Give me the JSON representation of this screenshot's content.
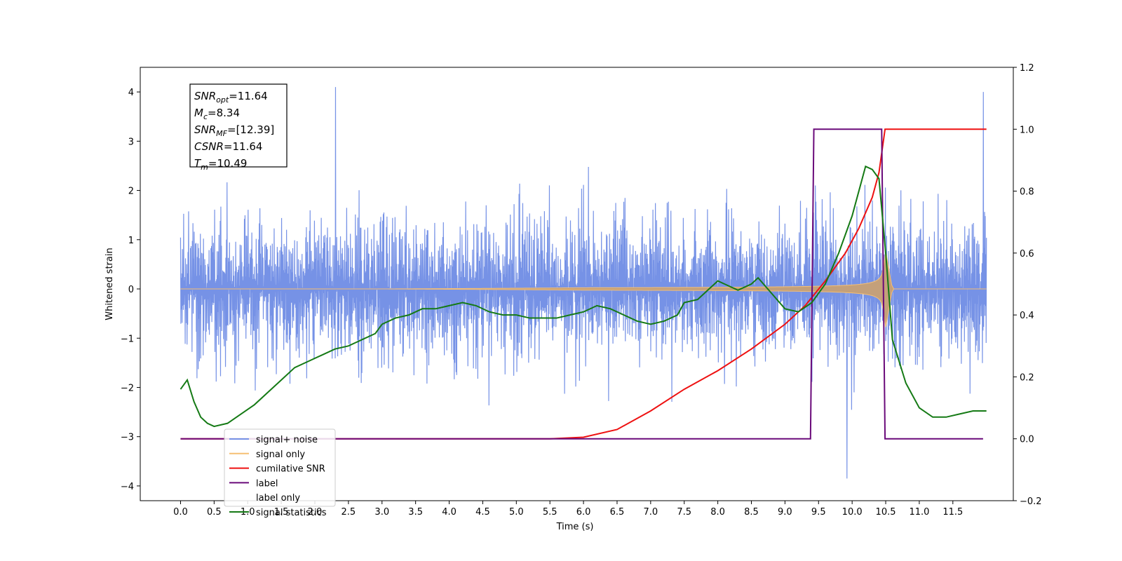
{
  "chart_data": {
    "type": "line",
    "title": "",
    "xlabel": "Time (s)",
    "ylabel": "Whitened strain",
    "xlim": [
      -0.6,
      12.4
    ],
    "ylim": [
      -4.3,
      4.5
    ],
    "y2lim": [
      -0.2,
      1.2
    ],
    "grid": false,
    "legend_position": "lower-left",
    "x_ticks": [
      "0.0",
      "0.5",
      "1.0",
      "1.5",
      "2.0",
      "2.5",
      "3.0",
      "3.5",
      "4.0",
      "4.5",
      "5.0",
      "5.5",
      "6.0",
      "6.5",
      "7.0",
      "7.5",
      "8.0",
      "8.5",
      "9.0",
      "9.5",
      "10.0",
      "10.5",
      "11.0",
      "11.5"
    ],
    "y_ticks": [
      "4",
      "3",
      "2",
      "1",
      "0",
      "−1",
      "−2",
      "−3",
      "−4"
    ],
    "y2_ticks": [
      "1.2",
      "1.0",
      "0.8",
      "0.6",
      "0.4",
      "0.2",
      "0.0",
      "−0.2"
    ],
    "annotation": [
      {
        "base": "SNR",
        "sub": "opt",
        "rest": "=11.64"
      },
      {
        "base": "M",
        "sub": "c",
        "rest": "=8.34"
      },
      {
        "base": "SNR",
        "sub": "MF",
        "rest": "=[12.39]"
      },
      {
        "base": "CSNR",
        "sub": "",
        "rest": "=11.64"
      },
      {
        "base": "T",
        "sub": "m",
        "rest": "=10.49"
      }
    ],
    "noise": {
      "t_start": 0.0,
      "t_end": 12.0,
      "typical_envelope": [
        -1.6,
        1.7
      ],
      "max": 4.1,
      "min": -3.85
    },
    "chirp": {
      "t_merge": 10.49,
      "peak_amplitude": 0.85,
      "ringdown_end": 10.6
    },
    "series": [
      {
        "name": "signal+ noise",
        "color": "#7692e6",
        "axis": "left"
      },
      {
        "name": "signal only",
        "color": "#f5bf73",
        "axis": "left"
      },
      {
        "name": "cumilative SNR",
        "color": "#ee1111",
        "axis": "right",
        "x": [
          0,
          5.5,
          6.0,
          6.5,
          7.0,
          7.5,
          8.0,
          8.5,
          9.0,
          9.3,
          9.6,
          9.9,
          10.1,
          10.3,
          10.4,
          10.49,
          12.0
        ],
        "y": [
          0.0,
          0.0,
          0.005,
          0.03,
          0.09,
          0.16,
          0.22,
          0.29,
          0.37,
          0.43,
          0.51,
          0.6,
          0.68,
          0.78,
          0.86,
          1.0,
          1.0
        ]
      },
      {
        "name": "label",
        "color": "#6a0a7a",
        "axis": "right",
        "x": [
          0,
          9.38,
          9.43,
          10.44,
          10.49,
          11.95
        ],
        "y": [
          0.0,
          0.0,
          1.0,
          1.0,
          0.0,
          0.0
        ]
      },
      {
        "name": "label only",
        "color": "#ffffff",
        "axis": "right",
        "hidden": true
      },
      {
        "name": "signal statistics",
        "color": "#157a15",
        "axis": "right",
        "x": [
          0.0,
          0.1,
          0.2,
          0.3,
          0.4,
          0.5,
          0.7,
          0.9,
          1.1,
          1.3,
          1.5,
          1.7,
          1.9,
          2.1,
          2.3,
          2.5,
          2.7,
          2.9,
          3.0,
          3.2,
          3.4,
          3.6,
          3.8,
          4.0,
          4.2,
          4.4,
          4.6,
          4.8,
          5.0,
          5.2,
          5.4,
          5.6,
          5.8,
          6.0,
          6.2,
          6.4,
          6.6,
          6.8,
          7.0,
          7.2,
          7.4,
          7.5,
          7.7,
          7.9,
          8.0,
          8.1,
          8.3,
          8.5,
          8.6,
          8.8,
          9.0,
          9.2,
          9.4,
          9.6,
          9.8,
          10.0,
          10.1,
          10.2,
          10.3,
          10.4,
          10.5,
          10.6,
          10.8,
          11.0,
          11.2,
          11.4,
          11.6,
          11.8,
          12.0
        ],
        "y": [
          0.16,
          0.19,
          0.12,
          0.07,
          0.05,
          0.04,
          0.05,
          0.08,
          0.11,
          0.15,
          0.19,
          0.23,
          0.25,
          0.27,
          0.29,
          0.3,
          0.32,
          0.34,
          0.37,
          0.39,
          0.4,
          0.42,
          0.42,
          0.43,
          0.44,
          0.43,
          0.41,
          0.4,
          0.4,
          0.39,
          0.39,
          0.39,
          0.4,
          0.41,
          0.43,
          0.42,
          0.4,
          0.38,
          0.37,
          0.38,
          0.4,
          0.44,
          0.45,
          0.49,
          0.51,
          0.5,
          0.48,
          0.5,
          0.52,
          0.47,
          0.42,
          0.41,
          0.44,
          0.5,
          0.6,
          0.72,
          0.8,
          0.88,
          0.87,
          0.84,
          0.6,
          0.32,
          0.18,
          0.1,
          0.07,
          0.07,
          0.08,
          0.09,
          0.09
        ]
      }
    ]
  }
}
